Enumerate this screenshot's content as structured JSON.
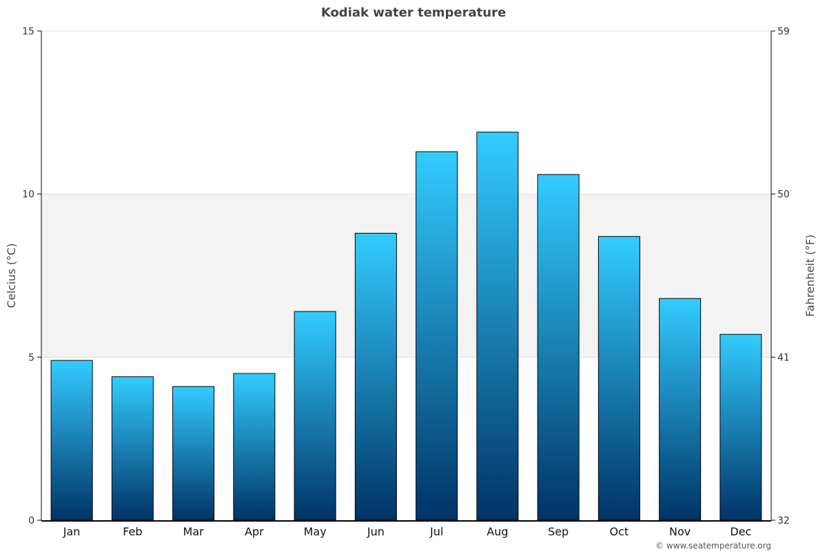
{
  "chart_data": {
    "type": "bar",
    "title": "Kodiak water temperature",
    "ylabel": "Celcius (°C)",
    "y2label": "Fahrenheit (°F)",
    "ylim": [
      0,
      15
    ],
    "y2lim": [
      32,
      59
    ],
    "yticks": [
      0,
      5,
      10,
      15
    ],
    "y2ticks": [
      32,
      41,
      50,
      59
    ],
    "categories": [
      "Jan",
      "Feb",
      "Mar",
      "Apr",
      "May",
      "Jun",
      "Jul",
      "Aug",
      "Sep",
      "Oct",
      "Nov",
      "Dec"
    ],
    "values": [
      4.9,
      4.4,
      4.1,
      4.5,
      6.4,
      8.8,
      11.3,
      11.9,
      10.6,
      8.7,
      6.8,
      5.7
    ],
    "shaded_band": [
      5,
      10
    ],
    "grid": true,
    "legend": "none",
    "colors": {
      "bar_top": "#33ccff",
      "bar_bottom": "#003366",
      "bar_stroke": "#000000",
      "band": "#f3f3f3",
      "grid": "#dddddd",
      "axis": "#000000"
    }
  },
  "credit": "© www.seatemperature.org"
}
